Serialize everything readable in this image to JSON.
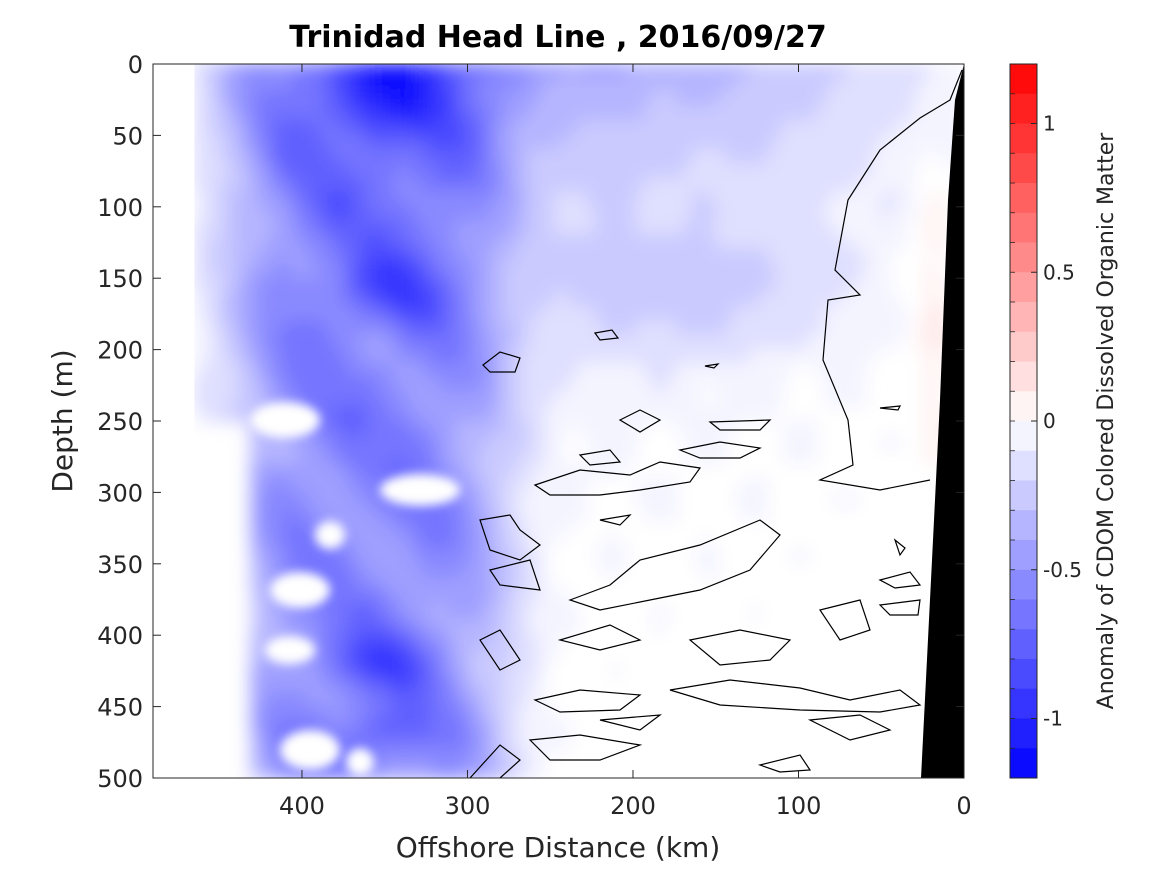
{
  "chart_data": {
    "type": "heatmap",
    "title": "Trinidad Head Line , 2016/09/27",
    "xlabel": "Offshore Distance (km)",
    "ylabel": "Depth (m)",
    "xlim": [
      490,
      0
    ],
    "ylim": [
      0,
      500
    ],
    "xticks": [
      400,
      300,
      200,
      100,
      0
    ],
    "yticks": [
      0,
      50,
      100,
      150,
      200,
      250,
      300,
      350,
      400,
      450,
      500
    ],
    "colorbar": {
      "label": "Anomaly of CDOM Colored Dissolved Organic Matter",
      "range": [
        -1.2,
        1.2
      ],
      "ticks": [
        1,
        0.5,
        0,
        -0.5,
        -1
      ],
      "levels": 24
    },
    "data_extent_x": [
      465,
      0
    ],
    "anomaly_core": {
      "distance_range_km": [
        300,
        420
      ],
      "min_value": -1.0
    },
    "colors": {
      "negative": "#0000ff",
      "positive": "#ff0000",
      "zero": "#ffffff",
      "bathymetry": "#000000"
    }
  }
}
